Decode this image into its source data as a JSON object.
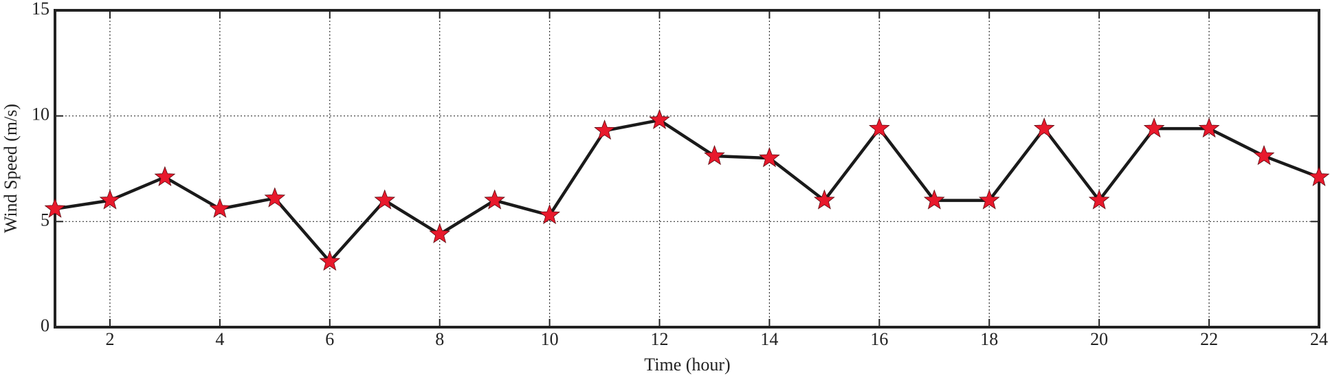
{
  "chart_data": {
    "type": "line",
    "xlabel": "Time (hour)",
    "ylabel": "Wind Speed (m/s)",
    "x": [
      1,
      2,
      3,
      4,
      5,
      6,
      7,
      8,
      9,
      10,
      11,
      12,
      13,
      14,
      15,
      16,
      17,
      18,
      19,
      20,
      21,
      22,
      23,
      24
    ],
    "series": [
      {
        "color": "#1a1a1a",
        "marker_color": "#e8192c",
        "values": [
          5.6,
          6.0,
          7.1,
          5.6,
          6.1,
          3.1,
          6.0,
          4.4,
          6.0,
          5.3,
          9.3,
          9.8,
          8.1,
          8.0,
          6.0,
          9.4,
          6.0,
          6.0,
          9.4,
          6.0,
          9.4,
          9.4,
          8.1,
          7.1
        ]
      }
    ],
    "xlim": [
      1,
      24
    ],
    "xticks": [
      2,
      4,
      6,
      8,
      10,
      12,
      14,
      16,
      18,
      20,
      22,
      24
    ],
    "ylim": [
      0,
      15
    ],
    "yticks": [
      0,
      5,
      10,
      15
    ],
    "grid": true
  }
}
